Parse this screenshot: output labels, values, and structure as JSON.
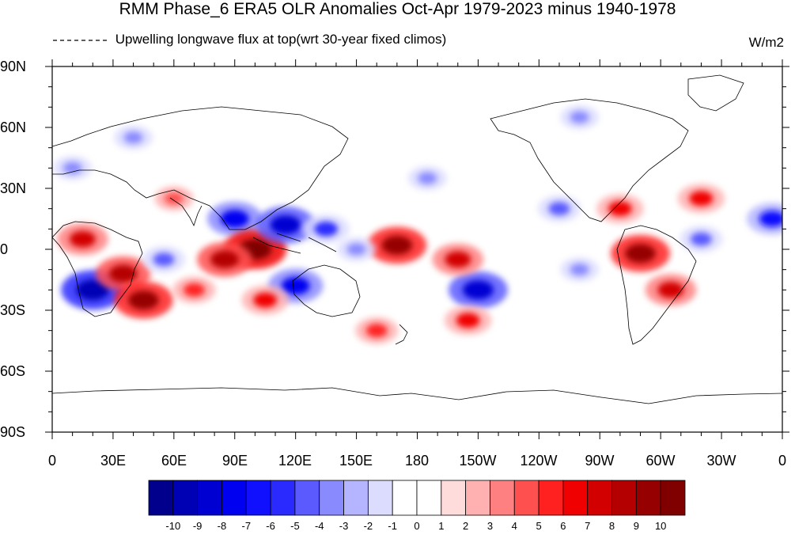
{
  "title": "RMM Phase_6 ERA5 OLR Anomalies Oct-Apr 1979-2023 minus 1940-1978",
  "subtitle": "Upwelling longwave flux at top(wrt 30-year fixed climos)",
  "units": "W/m2",
  "lat_labels": [
    "90N",
    "60N",
    "30N",
    "0",
    "30S",
    "60S",
    "90S"
  ],
  "lon_labels": [
    "0",
    "30E",
    "60E",
    "90E",
    "120E",
    "150E",
    "180",
    "150W",
    "120W",
    "90W",
    "60W",
    "30W",
    "0"
  ],
  "colorbar": {
    "labels": [
      "-10",
      "-9",
      "-8",
      "-7",
      "-6",
      "-5",
      "-4",
      "-3",
      "-2",
      "-1",
      "0",
      "1",
      "2",
      "3",
      "4",
      "5",
      "6",
      "7",
      "8",
      "9",
      "10"
    ],
    "colors": [
      "#00008c",
      "#0000b4",
      "#0000d2",
      "#0000f0",
      "#1010ff",
      "#2a2aff",
      "#5a5aff",
      "#8a8aff",
      "#b5b5ff",
      "#dcdcff",
      "#ffffff",
      "#ffffff",
      "#ffdcdc",
      "#ffb0b0",
      "#ff8080",
      "#ff5050",
      "#ff2020",
      "#f00000",
      "#d20000",
      "#b40000",
      "#960000",
      "#800000"
    ]
  },
  "anomalies": [
    {
      "lon": 20,
      "lat": -20,
      "value": -10
    },
    {
      "lon": 35,
      "lat": -12,
      "value": 8
    },
    {
      "lon": 45,
      "lat": -25,
      "value": 9
    },
    {
      "lon": 15,
      "lat": 5,
      "value": 7
    },
    {
      "lon": 55,
      "lat": -5,
      "value": -5
    },
    {
      "lon": 90,
      "lat": 15,
      "value": -8
    },
    {
      "lon": 100,
      "lat": 0,
      "value": 10
    },
    {
      "lon": 85,
      "lat": -5,
      "value": 8
    },
    {
      "lon": 115,
      "lat": 12,
      "value": -9
    },
    {
      "lon": 120,
      "lat": -18,
      "value": -8
    },
    {
      "lon": 135,
      "lat": 10,
      "value": -6
    },
    {
      "lon": 170,
      "lat": 2,
      "value": 9
    },
    {
      "lon": 150,
      "lat": 0,
      "value": -4
    },
    {
      "lon": 210,
      "lat": -20,
      "value": -9
    },
    {
      "lon": 200,
      "lat": -5,
      "value": 7
    },
    {
      "lon": 290,
      "lat": -2,
      "value": 9
    },
    {
      "lon": 305,
      "lat": -20,
      "value": 7
    },
    {
      "lon": 355,
      "lat": 15,
      "value": -7
    },
    {
      "lon": 320,
      "lat": 5,
      "value": -5
    },
    {
      "lon": 320,
      "lat": 25,
      "value": 6
    },
    {
      "lon": 250,
      "lat": 20,
      "value": -5
    },
    {
      "lon": 260,
      "lat": -10,
      "value": -4
    },
    {
      "lon": 105,
      "lat": -25,
      "value": 6
    },
    {
      "lon": 160,
      "lat": -40,
      "value": 5
    },
    {
      "lon": 205,
      "lat": -35,
      "value": 6
    },
    {
      "lon": 70,
      "lat": -20,
      "value": 5
    },
    {
      "lon": 40,
      "lat": 55,
      "value": -4
    },
    {
      "lon": 260,
      "lat": 65,
      "value": -4
    },
    {
      "lon": 280,
      "lat": 20,
      "value": 6
    },
    {
      "lon": 10,
      "lat": 40,
      "value": -4
    },
    {
      "lon": 185,
      "lat": 35,
      "value": -4
    },
    {
      "lon": 60,
      "lat": 25,
      "value": 4
    }
  ]
}
